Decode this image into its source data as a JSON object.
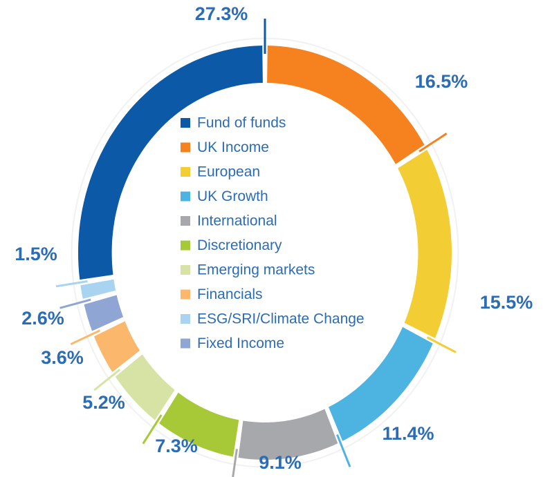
{
  "chart_data": {
    "type": "donut",
    "categories": [
      "Fund of funds",
      "UK Income",
      "European",
      "UK Growth",
      "International",
      "Discretionary",
      "Emerging markets",
      "Financials",
      "ESG/SRI/Climate Change",
      "Fixed Income"
    ],
    "values": [
      27.3,
      16.5,
      15.5,
      11.4,
      9.1,
      7.3,
      5.2,
      3.6,
      1.5,
      2.6
    ],
    "value_labels": [
      "27.3%",
      "16.5%",
      "15.5%",
      "11.4%",
      "9.1%",
      "7.3%",
      "5.2%",
      "3.6%",
      "1.5%",
      "2.6%"
    ],
    "colors": [
      "#0b59a7",
      "#f5821f",
      "#f2cd33",
      "#4db3e1",
      "#a6a8ab",
      "#a7c937",
      "#d6e3a5",
      "#fbb76b",
      "#a8d3f1",
      "#8fa5d3"
    ],
    "legend": "center"
  }
}
